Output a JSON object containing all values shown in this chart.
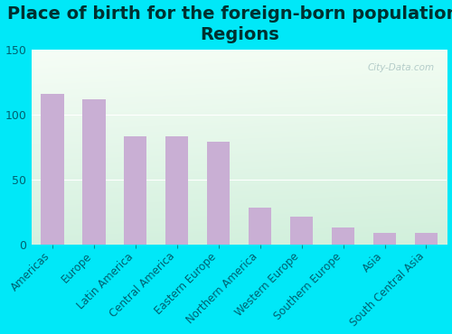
{
  "title": "Place of birth for the foreign-born population -\nRegions",
  "categories": [
    "Americas",
    "Europe",
    "Latin America",
    "Central America",
    "Eastern Europe",
    "Northern America",
    "Western Europe",
    "Southern Europe",
    "Asia",
    "South Central Asia"
  ],
  "values": [
    116,
    112,
    83,
    83,
    79,
    28,
    21,
    13,
    9,
    9
  ],
  "bar_color": "#c9afd4",
  "ylim": [
    0,
    150
  ],
  "yticks": [
    0,
    50,
    100,
    150
  ],
  "fig_bg_color": "#00e8f8",
  "title_fontsize": 14,
  "tick_fontsize": 8.5,
  "ytick_fontsize": 9,
  "watermark": "City-Data.com"
}
